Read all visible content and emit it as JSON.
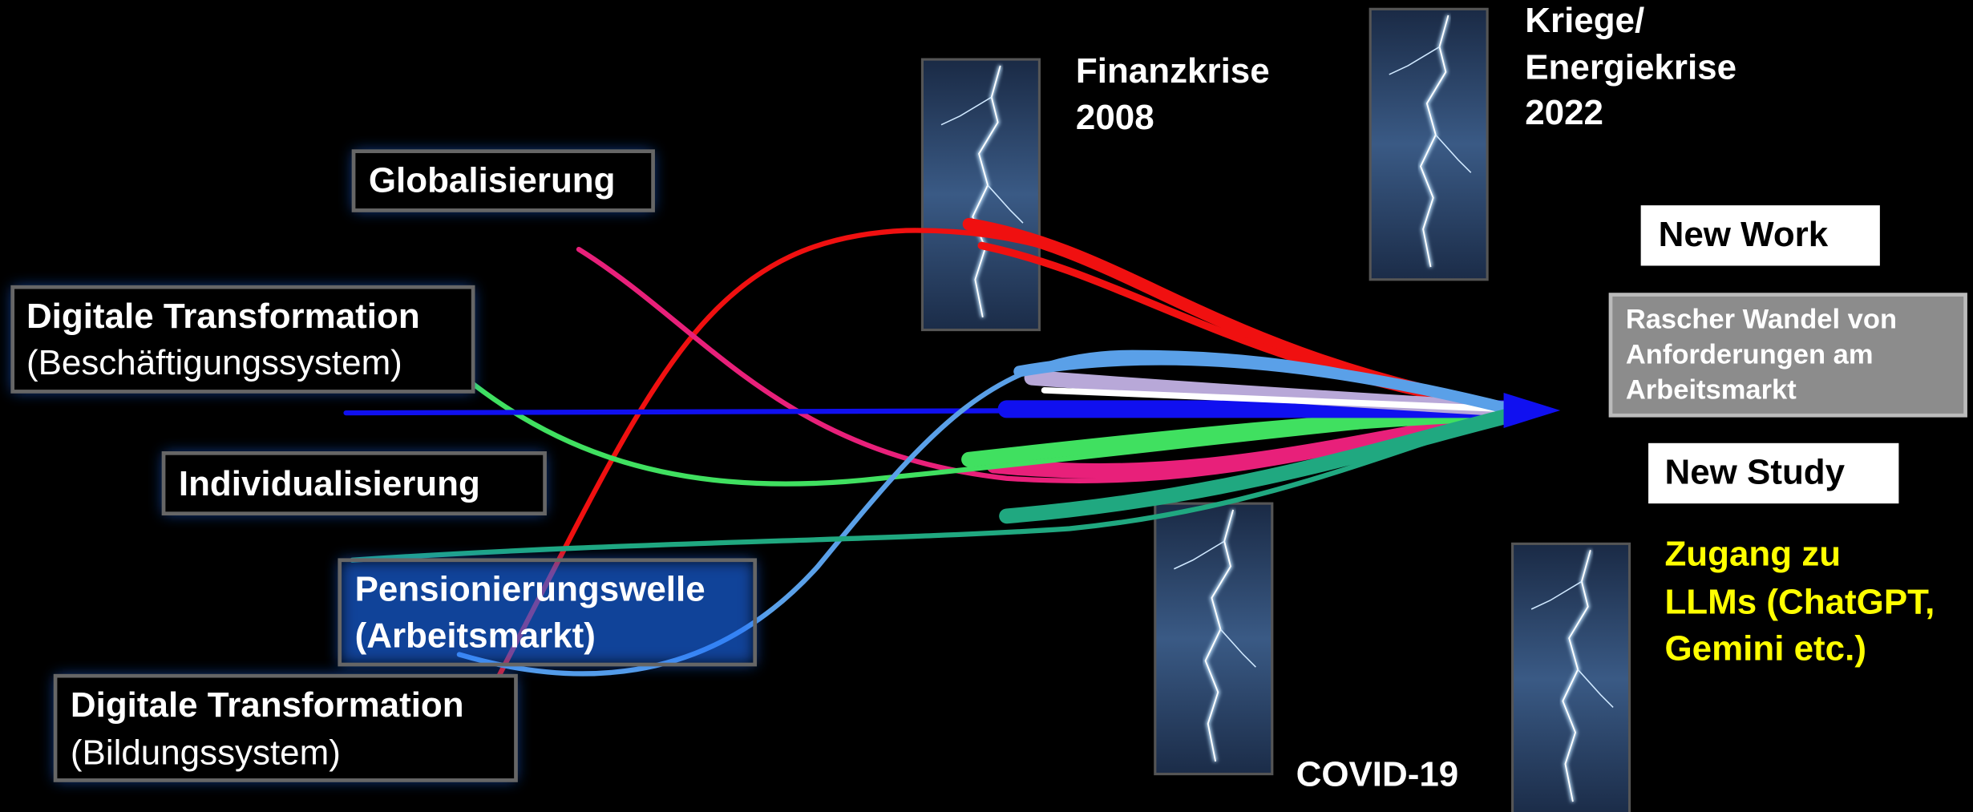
{
  "drivers": [
    {
      "title": "Globalisierung"
    },
    {
      "title": "Digitale Transformation",
      "subtitle": "(Beschäftigungssystem)"
    },
    {
      "title": "Individualisierung"
    },
    {
      "title": "Pensionierungswelle",
      "subtitle": "(Arbeitsmarkt)"
    },
    {
      "title": "Digitale Transformation",
      "subtitle": "(Bildungssystem)"
    }
  ],
  "crises": [
    {
      "lines": [
        "Finanzkrise",
        "2008"
      ]
    },
    {
      "lines": [
        "Kriege/",
        "Energiekrise",
        "2022"
      ]
    },
    {
      "lines": [
        "COVID-19"
      ]
    },
    {
      "lines": [
        "Zugang zu",
        "LLMs (ChatGPT,",
        "Gemini etc.)"
      ]
    }
  ],
  "outcomes": [
    {
      "lines": [
        "New Work"
      ]
    },
    {
      "lines": [
        "Rascher Wandel von",
        "Anforderungen am",
        "Arbeitsmarkt"
      ]
    },
    {
      "lines": [
        "New Study"
      ]
    }
  ]
}
